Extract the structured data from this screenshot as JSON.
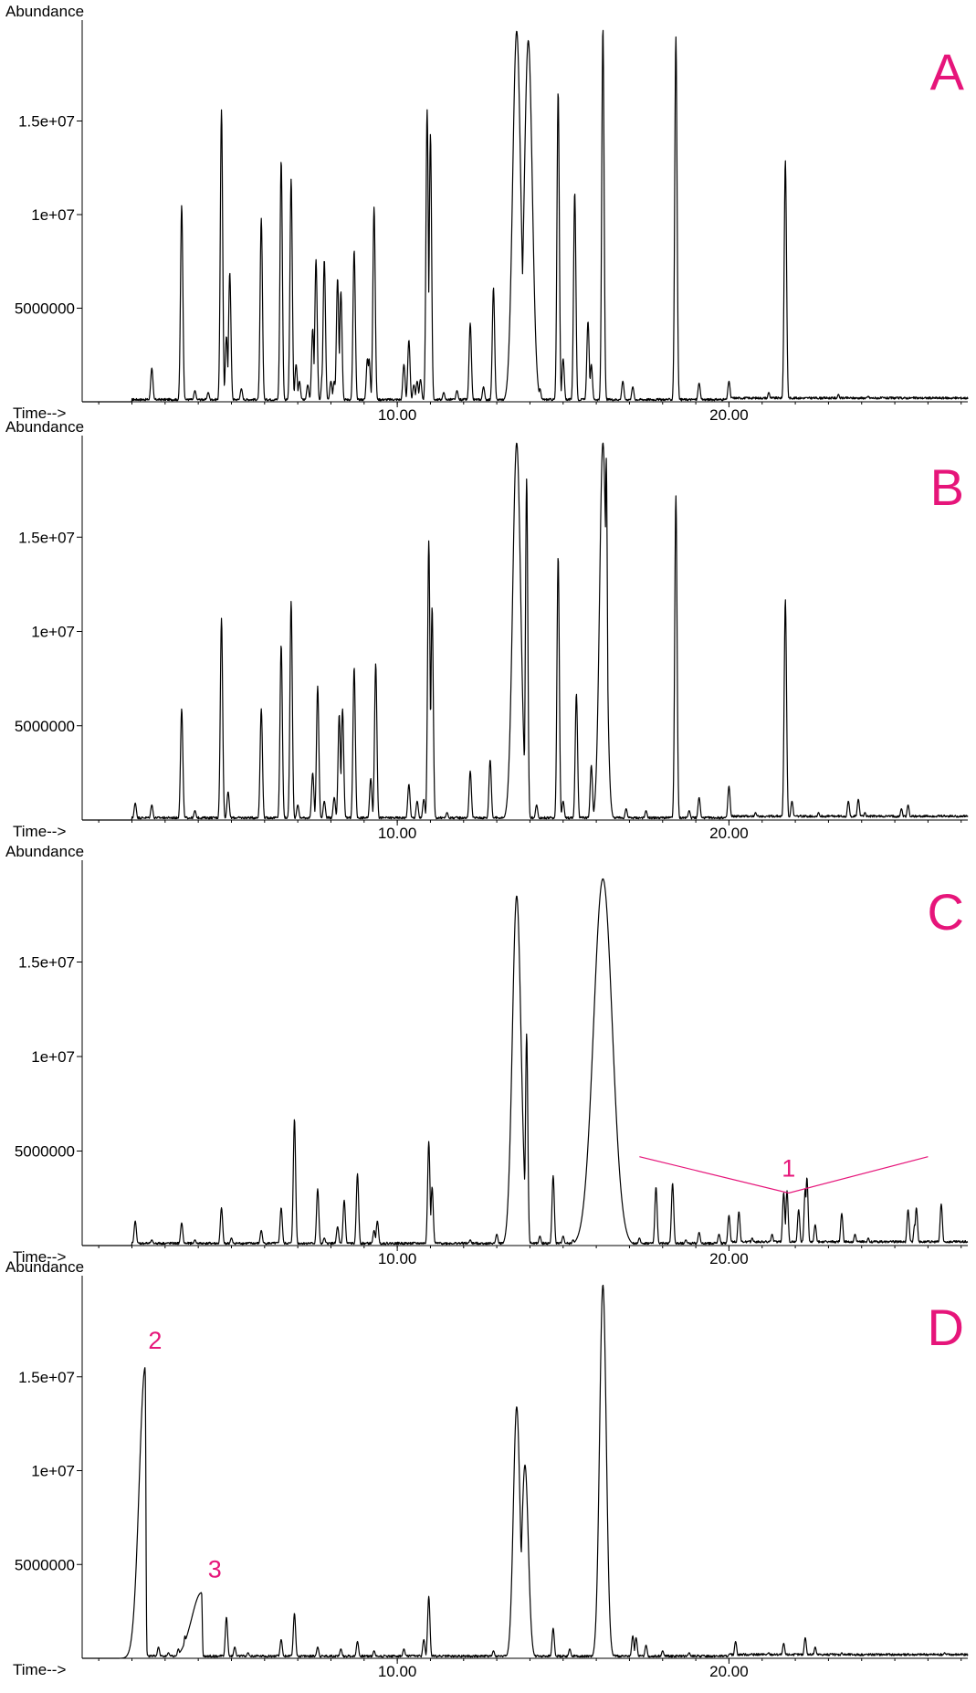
{
  "colors": {
    "trace": "#000000",
    "accent": "#e6157a"
  },
  "chart_data": [
    {
      "type": "line",
      "panel_label": "A",
      "ylabel": "Abundance",
      "xlabel": "Time-->",
      "xlim": [
        0.5,
        27.2
      ],
      "ylim": [
        0,
        20000000
      ],
      "x_ticks": [
        {
          "value": 10,
          "label": "10.00"
        },
        {
          "value": 20,
          "label": "20.00"
        }
      ],
      "y_ticks": [
        {
          "value": 5000000,
          "label": "5000000"
        },
        {
          "value": 10000000,
          "label": "1e+07"
        },
        {
          "value": 15000000,
          "label": "1.5e+07"
        }
      ],
      "annotations": [],
      "peaks": [
        {
          "rt": 2.6,
          "h": 1800000
        },
        {
          "rt": 3.5,
          "h": 10500000
        },
        {
          "rt": 3.9,
          "h": 600000
        },
        {
          "rt": 4.3,
          "h": 500000
        },
        {
          "rt": 4.7,
          "h": 15600000
        },
        {
          "rt": 4.85,
          "h": 3500000
        },
        {
          "rt": 4.95,
          "h": 6900000
        },
        {
          "rt": 5.3,
          "h": 700000
        },
        {
          "rt": 5.9,
          "h": 9800000
        },
        {
          "rt": 6.5,
          "h": 12900000
        },
        {
          "rt": 6.8,
          "h": 11900000
        },
        {
          "rt": 6.95,
          "h": 2000000
        },
        {
          "rt": 7.05,
          "h": 1100000
        },
        {
          "rt": 7.3,
          "h": 900000
        },
        {
          "rt": 7.45,
          "h": 3900000
        },
        {
          "rt": 7.55,
          "h": 7600000
        },
        {
          "rt": 7.75,
          "h": 1700000
        },
        {
          "rt": 7.8,
          "h": 7600000
        },
        {
          "rt": 8.0,
          "h": 1100000
        },
        {
          "rt": 8.1,
          "h": 1100000
        },
        {
          "rt": 8.2,
          "h": 6600000
        },
        {
          "rt": 8.3,
          "h": 5900000
        },
        {
          "rt": 8.7,
          "h": 8100000
        },
        {
          "rt": 9.1,
          "h": 2300000
        },
        {
          "rt": 9.15,
          "h": 2300000
        },
        {
          "rt": 9.3,
          "h": 10400000
        },
        {
          "rt": 10.2,
          "h": 2000000
        },
        {
          "rt": 10.35,
          "h": 3300000
        },
        {
          "rt": 10.5,
          "h": 900000
        },
        {
          "rt": 10.6,
          "h": 1100000
        },
        {
          "rt": 10.7,
          "h": 1200000
        },
        {
          "rt": 10.9,
          "h": 15600000
        },
        {
          "rt": 11.0,
          "h": 14300000
        },
        {
          "rt": 11.4,
          "h": 500000
        },
        {
          "rt": 11.8,
          "h": 600000
        },
        {
          "rt": 12.2,
          "h": 4200000
        },
        {
          "rt": 12.6,
          "h": 800000
        },
        {
          "rt": 12.9,
          "h": 6100000
        },
        {
          "rt": 13.6,
          "h": 19800000,
          "w": 0.12
        },
        {
          "rt": 13.95,
          "h": 19300000,
          "w": 0.12
        },
        {
          "rt": 14.3,
          "h": 700000
        },
        {
          "rt": 14.85,
          "h": 16600000
        },
        {
          "rt": 15.0,
          "h": 2300000
        },
        {
          "rt": 15.35,
          "h": 11200000
        },
        {
          "rt": 15.75,
          "h": 4300000
        },
        {
          "rt": 15.85,
          "h": 2000000
        },
        {
          "rt": 16.2,
          "h": 20000000
        },
        {
          "rt": 16.8,
          "h": 1100000
        },
        {
          "rt": 17.1,
          "h": 800000
        },
        {
          "rt": 18.4,
          "h": 19500000
        },
        {
          "rt": 19.1,
          "h": 1000000
        },
        {
          "rt": 20.0,
          "h": 1100000
        },
        {
          "rt": 21.2,
          "h": 500000
        },
        {
          "rt": 21.7,
          "h": 12900000
        },
        {
          "rt": 23.3,
          "h": 400000
        },
        {
          "rt": 24.2,
          "h": 300000
        }
      ]
    },
    {
      "type": "line",
      "panel_label": "B",
      "ylabel": "Abundance",
      "xlabel": "Time-->",
      "xlim": [
        0.5,
        27.2
      ],
      "ylim": [
        0,
        20000000
      ],
      "x_ticks": [
        {
          "value": 10,
          "label": "10.00"
        },
        {
          "value": 20,
          "label": "20.00"
        }
      ],
      "y_ticks": [
        {
          "value": 5000000,
          "label": "5000000"
        },
        {
          "value": 10000000,
          "label": "1e+07"
        },
        {
          "value": 15000000,
          "label": "1.5e+07"
        }
      ],
      "annotations": [],
      "peaks": [
        {
          "rt": 2.1,
          "h": 900000
        },
        {
          "rt": 2.6,
          "h": 800000
        },
        {
          "rt": 3.5,
          "h": 5900000
        },
        {
          "rt": 3.9,
          "h": 500000
        },
        {
          "rt": 4.7,
          "h": 10700000
        },
        {
          "rt": 4.9,
          "h": 1500000
        },
        {
          "rt": 5.9,
          "h": 5900000
        },
        {
          "rt": 6.5,
          "h": 9300000
        },
        {
          "rt": 6.8,
          "h": 11600000
        },
        {
          "rt": 7.0,
          "h": 800000
        },
        {
          "rt": 7.45,
          "h": 2500000
        },
        {
          "rt": 7.6,
          "h": 7100000
        },
        {
          "rt": 7.8,
          "h": 1000000
        },
        {
          "rt": 8.1,
          "h": 1200000
        },
        {
          "rt": 8.25,
          "h": 5600000
        },
        {
          "rt": 8.35,
          "h": 5900000
        },
        {
          "rt": 8.7,
          "h": 8100000
        },
        {
          "rt": 9.2,
          "h": 2200000
        },
        {
          "rt": 9.35,
          "h": 8300000
        },
        {
          "rt": 10.35,
          "h": 1900000
        },
        {
          "rt": 10.6,
          "h": 1000000
        },
        {
          "rt": 10.8,
          "h": 1100000
        },
        {
          "rt": 10.95,
          "h": 14800000
        },
        {
          "rt": 11.05,
          "h": 11300000
        },
        {
          "rt": 11.5,
          "h": 400000
        },
        {
          "rt": 12.2,
          "h": 2600000
        },
        {
          "rt": 12.8,
          "h": 3200000
        },
        {
          "rt": 13.6,
          "h": 20000000,
          "w": 0.12
        },
        {
          "rt": 13.9,
          "h": 18100000
        },
        {
          "rt": 14.2,
          "h": 800000
        },
        {
          "rt": 14.85,
          "h": 14000000
        },
        {
          "rt": 15.0,
          "h": 1000000
        },
        {
          "rt": 15.4,
          "h": 6700000
        },
        {
          "rt": 15.85,
          "h": 2900000
        },
        {
          "rt": 16.0,
          "h": 1300000
        },
        {
          "rt": 16.2,
          "h": 20000000,
          "w": 0.1
        },
        {
          "rt": 16.3,
          "h": 19200000
        },
        {
          "rt": 16.9,
          "h": 600000
        },
        {
          "rt": 17.5,
          "h": 500000
        },
        {
          "rt": 18.4,
          "h": 17200000
        },
        {
          "rt": 18.8,
          "h": 500000
        },
        {
          "rt": 19.1,
          "h": 1200000
        },
        {
          "rt": 20.0,
          "h": 1800000
        },
        {
          "rt": 20.8,
          "h": 400000
        },
        {
          "rt": 21.7,
          "h": 11700000
        },
        {
          "rt": 21.9,
          "h": 1000000
        },
        {
          "rt": 22.7,
          "h": 400000
        },
        {
          "rt": 23.6,
          "h": 1000000
        },
        {
          "rt": 23.9,
          "h": 1100000
        },
        {
          "rt": 24.1,
          "h": 400000
        },
        {
          "rt": 25.2,
          "h": 600000
        },
        {
          "rt": 25.4,
          "h": 800000
        }
      ]
    },
    {
      "type": "line",
      "panel_label": "C",
      "ylabel": "Abundance",
      "xlabel": "Time-->",
      "xlim": [
        0.5,
        27.2
      ],
      "ylim": [
        0,
        20000000
      ],
      "x_ticks": [
        {
          "value": 10,
          "label": "10.00"
        },
        {
          "value": 20,
          "label": "20.00"
        }
      ],
      "y_ticks": [
        {
          "value": 5000000,
          "label": "5000000"
        },
        {
          "value": 10000000,
          "label": "1e+07"
        },
        {
          "value": 15000000,
          "label": "1.5e+07"
        }
      ],
      "annotations": [
        {
          "text": "1",
          "kind": "bracket",
          "apex": [
            21.8,
            3500000
          ],
          "from": [
            17.3,
            4700000
          ],
          "to": [
            26.0,
            4700000
          ],
          "label_at": [
            21.8,
            3650000
          ]
        }
      ],
      "peaks": [
        {
          "rt": 2.1,
          "h": 1300000
        },
        {
          "rt": 2.6,
          "h": 300000
        },
        {
          "rt": 3.5,
          "h": 1200000
        },
        {
          "rt": 3.9,
          "h": 300000
        },
        {
          "rt": 4.7,
          "h": 2000000
        },
        {
          "rt": 5.0,
          "h": 400000
        },
        {
          "rt": 5.9,
          "h": 800000
        },
        {
          "rt": 6.5,
          "h": 2000000
        },
        {
          "rt": 6.9,
          "h": 6700000
        },
        {
          "rt": 7.6,
          "h": 3000000
        },
        {
          "rt": 7.8,
          "h": 400000
        },
        {
          "rt": 8.2,
          "h": 1000000
        },
        {
          "rt": 8.4,
          "h": 2400000
        },
        {
          "rt": 8.8,
          "h": 3800000
        },
        {
          "rt": 9.3,
          "h": 800000
        },
        {
          "rt": 9.4,
          "h": 1300000
        },
        {
          "rt": 10.95,
          "h": 5500000
        },
        {
          "rt": 11.05,
          "h": 3100000
        },
        {
          "rt": 12.2,
          "h": 300000
        },
        {
          "rt": 13.0,
          "h": 600000
        },
        {
          "rt": 13.6,
          "h": 18500000,
          "w": 0.13
        },
        {
          "rt": 13.9,
          "h": 11200000
        },
        {
          "rt": 14.3,
          "h": 500000
        },
        {
          "rt": 14.7,
          "h": 3700000
        },
        {
          "rt": 15.0,
          "h": 500000
        },
        {
          "rt": 15.3,
          "h": 300000
        },
        {
          "rt": 16.2,
          "h": 19400000,
          "w": 0.28
        },
        {
          "rt": 16.8,
          "h": 400000
        },
        {
          "rt": 17.3,
          "h": 400000
        },
        {
          "rt": 17.8,
          "h": 3100000
        },
        {
          "rt": 18.3,
          "h": 3300000
        },
        {
          "rt": 18.7,
          "h": 300000
        },
        {
          "rt": 19.1,
          "h": 700000
        },
        {
          "rt": 19.7,
          "h": 600000
        },
        {
          "rt": 20.0,
          "h": 1600000
        },
        {
          "rt": 20.3,
          "h": 1800000
        },
        {
          "rt": 20.7,
          "h": 400000
        },
        {
          "rt": 21.3,
          "h": 600000
        },
        {
          "rt": 21.65,
          "h": 2800000
        },
        {
          "rt": 21.75,
          "h": 2900000
        },
        {
          "rt": 22.1,
          "h": 1900000
        },
        {
          "rt": 22.3,
          "h": 3000000
        },
        {
          "rt": 22.35,
          "h": 3600000
        },
        {
          "rt": 22.6,
          "h": 1100000
        },
        {
          "rt": 23.4,
          "h": 1700000
        },
        {
          "rt": 23.8,
          "h": 600000
        },
        {
          "rt": 24.2,
          "h": 400000
        },
        {
          "rt": 25.4,
          "h": 1900000
        },
        {
          "rt": 25.6,
          "h": 1100000
        },
        {
          "rt": 25.65,
          "h": 2000000
        },
        {
          "rt": 26.4,
          "h": 2200000
        }
      ]
    },
    {
      "type": "line",
      "panel_label": "D",
      "ylabel": "Abundance",
      "xlabel": "Time-->",
      "xlim": [
        0.5,
        27.2
      ],
      "ylim": [
        0,
        20000000
      ],
      "x_ticks": [
        {
          "value": 10,
          "label": "10.00"
        },
        {
          "value": 20,
          "label": "20.00"
        }
      ],
      "y_ticks": [
        {
          "value": 5000000,
          "label": "5000000"
        },
        {
          "value": 10000000,
          "label": "1e+07"
        },
        {
          "value": 15000000,
          "label": "1.5e+07"
        }
      ],
      "annotations": [
        {
          "text": "2",
          "kind": "label",
          "label_at": [
            2.7,
            16500000
          ]
        },
        {
          "text": "3",
          "kind": "label",
          "label_at": [
            4.5,
            4300000
          ]
        }
      ],
      "peaks": [
        {
          "rt": 2.4,
          "h": 15500000,
          "w": 0.18,
          "shape": "front"
        },
        {
          "rt": 4.1,
          "h": 3500000,
          "w": 0.3,
          "shape": "front"
        },
        {
          "rt": 2.8,
          "h": 600000
        },
        {
          "rt": 3.1,
          "h": 300000
        },
        {
          "rt": 3.4,
          "h": 500000
        },
        {
          "rt": 3.6,
          "h": 1200000
        },
        {
          "rt": 3.7,
          "h": 800000
        },
        {
          "rt": 4.85,
          "h": 2200000
        },
        {
          "rt": 5.1,
          "h": 600000
        },
        {
          "rt": 5.5,
          "h": 300000
        },
        {
          "rt": 6.5,
          "h": 1000000
        },
        {
          "rt": 6.9,
          "h": 2400000
        },
        {
          "rt": 7.6,
          "h": 600000
        },
        {
          "rt": 8.3,
          "h": 500000
        },
        {
          "rt": 8.8,
          "h": 900000
        },
        {
          "rt": 9.3,
          "h": 400000
        },
        {
          "rt": 10.2,
          "h": 500000
        },
        {
          "rt": 10.8,
          "h": 1000000
        },
        {
          "rt": 10.95,
          "h": 3300000
        },
        {
          "rt": 12.9,
          "h": 400000
        },
        {
          "rt": 13.6,
          "h": 13400000,
          "w": 0.1
        },
        {
          "rt": 13.85,
          "h": 10300000,
          "w": 0.1
        },
        {
          "rt": 14.7,
          "h": 1600000
        },
        {
          "rt": 15.2,
          "h": 500000
        },
        {
          "rt": 16.2,
          "h": 19900000,
          "w": 0.1
        },
        {
          "rt": 17.1,
          "h": 1200000
        },
        {
          "rt": 17.2,
          "h": 1100000
        },
        {
          "rt": 17.5,
          "h": 700000
        },
        {
          "rt": 18.0,
          "h": 400000
        },
        {
          "rt": 18.8,
          "h": 300000
        },
        {
          "rt": 20.2,
          "h": 900000
        },
        {
          "rt": 21.2,
          "h": 300000
        },
        {
          "rt": 21.65,
          "h": 800000
        },
        {
          "rt": 22.3,
          "h": 1100000
        },
        {
          "rt": 22.6,
          "h": 600000
        },
        {
          "rt": 23.4,
          "h": 300000
        },
        {
          "rt": 26.5,
          "h": 300000
        }
      ]
    }
  ]
}
